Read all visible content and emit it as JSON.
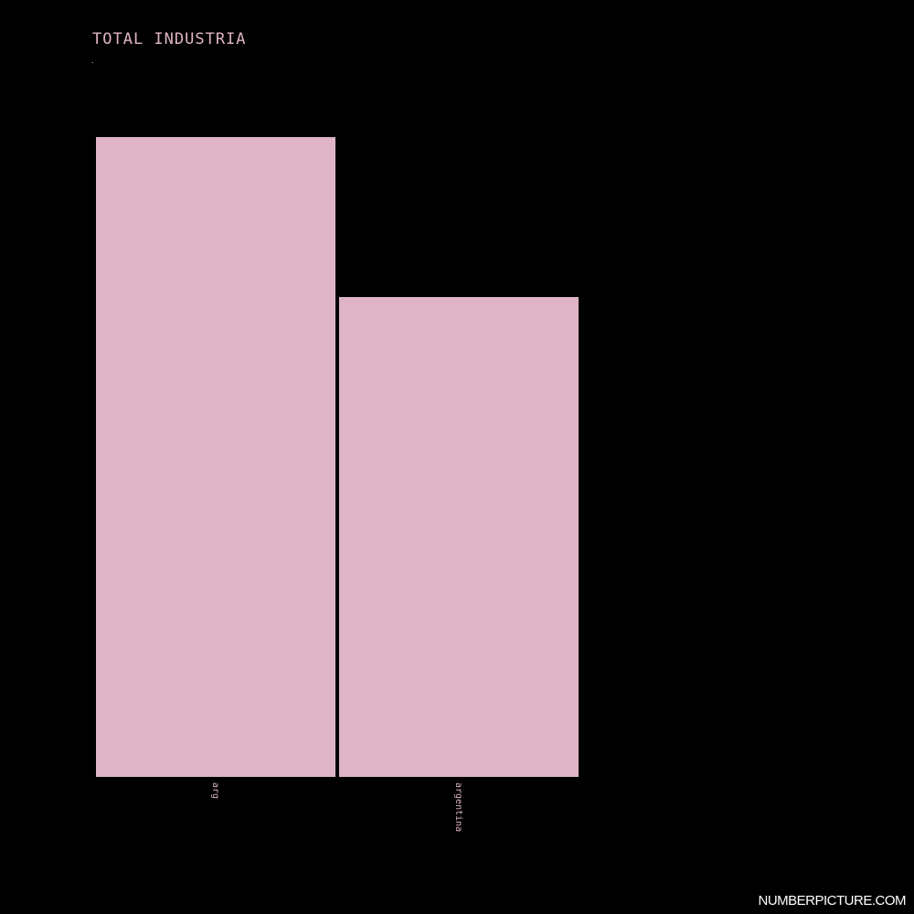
{
  "chart_data": {
    "type": "bar",
    "title": "TOTAL INDUSTRIA",
    "subtitle": ".",
    "categories": [
      "arg",
      "argentina"
    ],
    "values": [
      100,
      75
    ],
    "ylim": [
      0,
      100
    ],
    "grid": false,
    "bar_color": "#dfb4c6",
    "background_color": "#000000"
  },
  "watermark": "NUMBERPICTURE.COM"
}
